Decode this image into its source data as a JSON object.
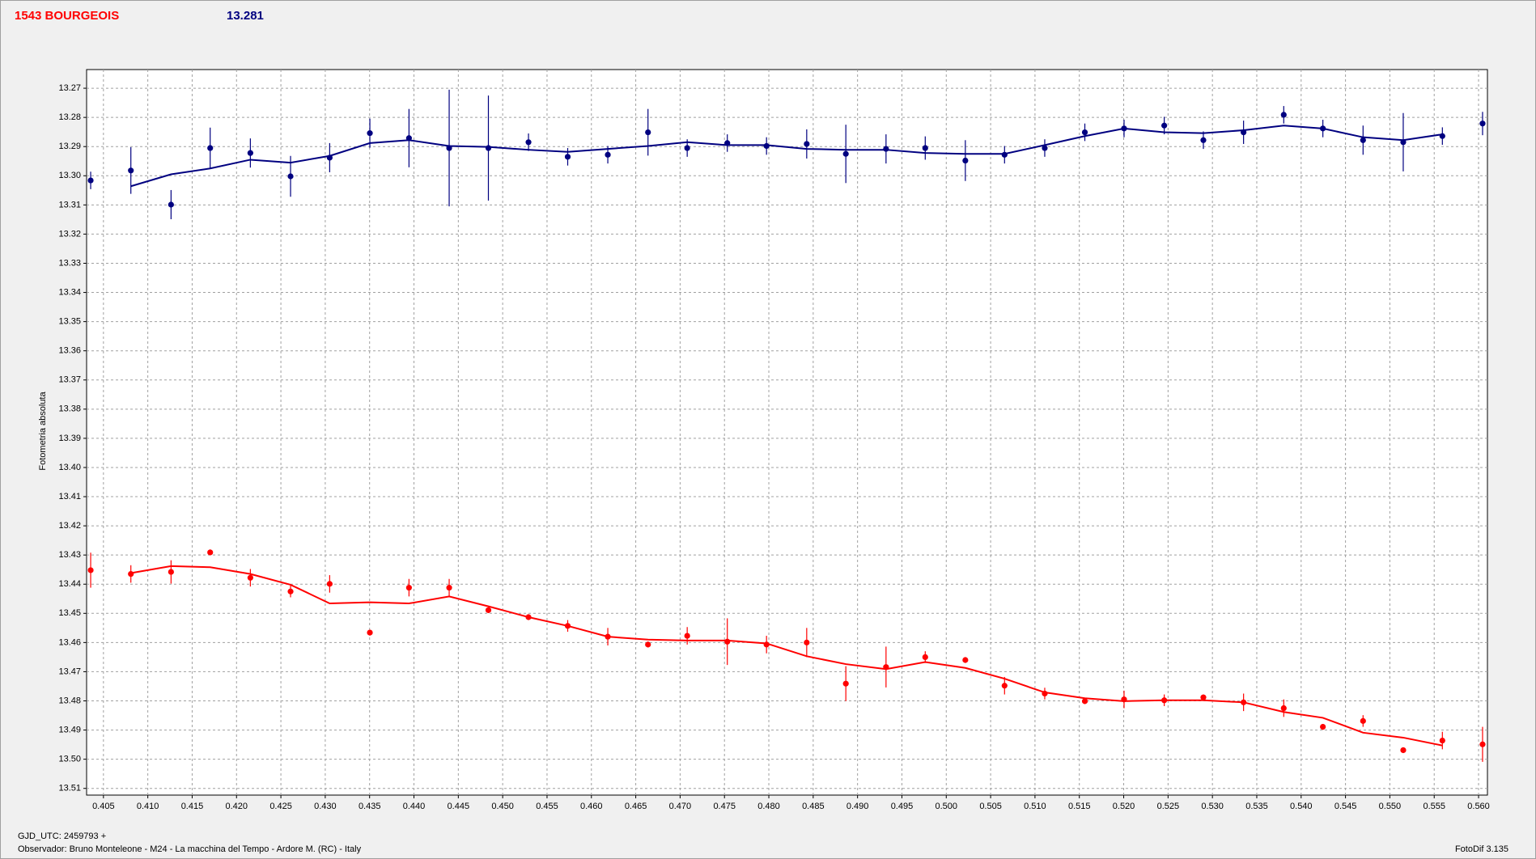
{
  "chart_data": {
    "type": "scatter",
    "title": "1543 BOURGEOIS",
    "subtitle": "13.281",
    "ylabel": "Fotometria absoluta",
    "xlabel": "GJD_UTC: 2459793 +",
    "footer": "Observador: Bruno Monteleone - M24 - La macchina del Tempo - Ardore M. (RC) - Italy",
    "software": "FotoDif 3.135",
    "grid": true,
    "xlim": [
      0.4031,
      0.561
    ],
    "ylim": [
      13.5123,
      13.2636
    ],
    "xticks": [
      0.405,
      {
        "value": 0.41,
        "label": "0.410"
      },
      0.415,
      {
        "value": 0.42,
        "label": "0.420"
      },
      0.425,
      {
        "value": 0.43,
        "label": "0.430"
      },
      0.435,
      {
        "value": 0.44,
        "label": "0.440"
      },
      0.445,
      {
        "value": 0.45,
        "label": "0.450"
      },
      0.455,
      {
        "value": 0.46,
        "label": "0.460"
      },
      0.465,
      {
        "value": 0.47,
        "label": "0.470"
      },
      0.475,
      {
        "value": 0.48,
        "label": "0.480"
      },
      0.485,
      {
        "value": 0.49,
        "label": "0.490"
      },
      0.495,
      {
        "value": 0.5,
        "label": "0.500"
      },
      0.505,
      {
        "value": 0.51,
        "label": "0.510"
      },
      0.515,
      {
        "value": 0.52,
        "label": "0.520"
      },
      0.525,
      {
        "value": 0.53,
        "label": "0.530"
      },
      0.535,
      {
        "value": 0.54,
        "label": "0.540"
      },
      0.545,
      {
        "value": 0.55,
        "label": "0.550"
      },
      0.555,
      {
        "value": 0.56,
        "label": "0.560"
      }
    ],
    "yticks": [
      13.27,
      13.28,
      13.29,
      {
        "value": 13.3,
        "label": "13.30"
      },
      13.31,
      13.32,
      13.33,
      13.34,
      13.35,
      13.36,
      13.37,
      13.38,
      13.39,
      {
        "value": 13.4,
        "label": "13.40"
      },
      13.41,
      13.42,
      13.43,
      13.44,
      13.45,
      13.46,
      13.47,
      13.48,
      13.49,
      {
        "value": 13.5,
        "label": "13.50"
      },
      13.51
    ],
    "x": [
      0.40356,
      0.40809,
      0.41262,
      0.41703,
      0.42156,
      0.42609,
      0.4305,
      0.43503,
      0.43944,
      0.44397,
      0.44839,
      0.45291,
      0.45733,
      0.46185,
      0.46638,
      0.4708,
      0.47532,
      0.47974,
      0.48427,
      0.48868,
      0.49321,
      0.49763,
      0.50215,
      0.50657,
      0.5111,
      0.51562,
      0.52004,
      0.52457,
      0.52898,
      0.53351,
      0.53804,
      0.54245,
      0.54698,
      0.55151,
      0.55592,
      0.56045
    ],
    "series": [
      {
        "style": "points",
        "color": "#000080",
        "values": [
          13.3016,
          13.2982,
          13.3099,
          13.2905,
          13.2922,
          13.3002,
          13.2938,
          13.2854,
          13.2871,
          13.2905,
          13.2905,
          13.2885,
          13.2935,
          13.2928,
          13.2851,
          13.2905,
          13.2888,
          13.2898,
          13.2891,
          13.2925,
          13.2908,
          13.2905,
          13.2948,
          13.2928,
          13.2905,
          13.2851,
          13.2838,
          13.2828,
          13.2878,
          13.2851,
          13.2791,
          13.2838,
          13.2878,
          13.2885,
          13.2864,
          13.2821
        ],
        "errors": [
          0.003,
          0.008,
          0.005,
          0.007,
          0.005,
          0.007,
          0.005,
          0.005,
          0.01,
          0.02,
          0.018,
          0.003,
          0.003,
          0.003,
          0.008,
          0.003,
          0.003,
          0.003,
          0.005,
          0.01,
          0.005,
          0.004,
          0.007,
          0.003,
          0.003,
          0.003,
          0.003,
          0.003,
          0.003,
          0.004,
          0.003,
          0.003,
          0.005,
          0.01,
          0.003,
          0.004
        ]
      },
      {
        "style": "line",
        "color": "#000080",
        "values": [
          null,
          13.3036,
          13.2995,
          13.2975,
          13.2945,
          13.2955,
          13.2932,
          13.2888,
          13.2878,
          13.2898,
          13.2901,
          13.2911,
          13.2918,
          13.2908,
          13.2898,
          13.2885,
          13.2895,
          13.2895,
          13.2908,
          13.2911,
          13.2911,
          13.2922,
          13.2925,
          13.2925,
          13.2895,
          13.2864,
          13.2838,
          13.2851,
          13.2854,
          13.2844,
          13.2828,
          13.2838,
          13.2868,
          13.2878,
          13.2858,
          null
        ]
      },
      {
        "style": "points",
        "color": "#ff0000",
        "values": [
          13.4352,
          13.4365,
          13.4358,
          13.4291,
          13.4378,
          13.4425,
          13.4399,
          13.4566,
          13.4412,
          13.4412,
          13.4489,
          13.4513,
          13.4543,
          13.458,
          13.4607,
          13.4577,
          13.4597,
          13.4607,
          13.46,
          13.4741,
          13.4684,
          13.465,
          13.466,
          13.4748,
          13.4775,
          13.4801,
          13.4795,
          13.4798,
          13.4788,
          13.4805,
          13.4825,
          13.4889,
          13.4869,
          13.4969,
          13.4936,
          13.4949
        ],
        "errors": [
          0.006,
          0.003,
          0.004,
          0.001,
          0.003,
          0.002,
          0.003,
          0.001,
          0.003,
          0.003,
          0.001,
          0.001,
          0.002,
          0.003,
          0.001,
          0.003,
          0.008,
          0.003,
          0.005,
          0.006,
          0.007,
          0.002,
          0.001,
          0.003,
          0.002,
          0.001,
          0.003,
          0.002,
          0.001,
          0.003,
          0.003,
          0.001,
          0.002,
          0.001,
          0.003,
          0.006
        ]
      },
      {
        "style": "line",
        "color": "#ff0000",
        "values": [
          null,
          13.4362,
          13.4338,
          13.4342,
          13.4365,
          13.4402,
          13.4466,
          13.4462,
          13.4466,
          13.4442,
          13.4476,
          13.4513,
          13.4543,
          13.458,
          13.459,
          13.4593,
          13.4593,
          13.4603,
          13.4647,
          13.4674,
          13.4691,
          13.4667,
          13.4687,
          13.4724,
          13.4771,
          13.4791,
          13.4801,
          13.4798,
          13.4798,
          13.4805,
          13.4838,
          13.4858,
          13.4909,
          13.4926,
          13.4953,
          null
        ]
      }
    ]
  }
}
